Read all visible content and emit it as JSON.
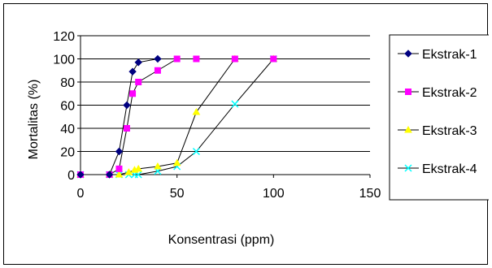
{
  "chart_data": {
    "type": "line",
    "title": "",
    "xlabel": "Konsentrasi (ppm)",
    "ylabel": "Mortalitas (%)",
    "xlim": [
      0,
      150
    ],
    "ylim": [
      0,
      120
    ],
    "xticks": [
      0,
      50,
      100,
      150
    ],
    "yticks": [
      0,
      20,
      40,
      60,
      80,
      100,
      120
    ],
    "grid": "horizontal",
    "legend": "right",
    "series": [
      {
        "name": "Ekstrak-1",
        "color": "#000080",
        "marker": "diamond",
        "x": [
          0,
          15,
          20,
          24,
          27,
          30,
          40
        ],
        "y": [
          0,
          0,
          20,
          60,
          89,
          97,
          100
        ]
      },
      {
        "name": "Ekstrak-2",
        "color": "#FF00FF",
        "marker": "square",
        "x": [
          0,
          15,
          20,
          24,
          27,
          30,
          40,
          50,
          60,
          80,
          100
        ],
        "y": [
          0,
          0,
          5,
          40,
          70,
          80,
          90,
          100,
          100,
          100,
          100
        ]
      },
      {
        "name": "Ekstrak-3",
        "color": "#FFFF00",
        "marker": "triangle",
        "x": [
          0,
          15,
          20,
          25,
          28,
          30,
          40,
          50,
          60,
          80,
          100
        ],
        "y": [
          0,
          0,
          0,
          2,
          4,
          5,
          7,
          10,
          54,
          100,
          100
        ]
      },
      {
        "name": "Ekstrak-4",
        "color": "#00FFFF",
        "marker": "x",
        "x": [
          0,
          15,
          20,
          25,
          28,
          30,
          40,
          50,
          60,
          80,
          100
        ],
        "y": [
          0,
          0,
          0,
          0,
          0,
          0,
          3,
          7,
          20,
          61,
          100
        ]
      }
    ]
  }
}
